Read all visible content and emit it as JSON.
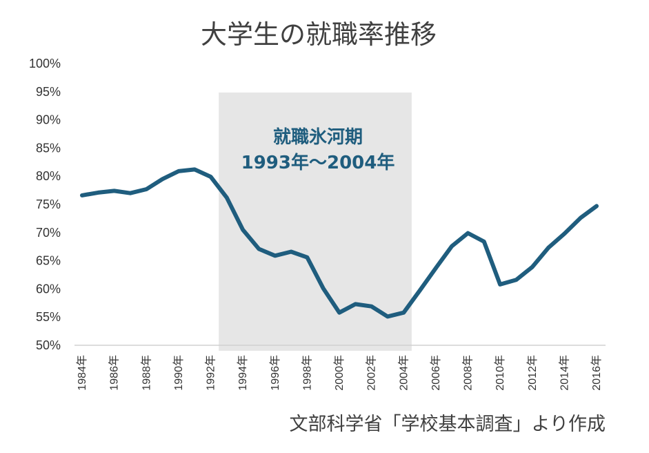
{
  "chart_data": {
    "type": "line",
    "title": "大学生の就職率推移",
    "source": "文部科学省「学校基本調査」より作成",
    "xlabel": "",
    "ylabel": "",
    "ylim": [
      50,
      100
    ],
    "yticks": [
      "50%",
      "55%",
      "60%",
      "65%",
      "70%",
      "75%",
      "80%",
      "85%",
      "90%",
      "95%",
      "100%"
    ],
    "x": [
      1984,
      1985,
      1986,
      1987,
      1988,
      1989,
      1990,
      1991,
      1992,
      1993,
      1994,
      1995,
      1996,
      1997,
      1998,
      1999,
      2000,
      2001,
      2002,
      2003,
      2004,
      2005,
      2006,
      2007,
      2008,
      2009,
      2010,
      2011,
      2012,
      2013,
      2014,
      2015,
      2016
    ],
    "xticks": [
      "1984年",
      "1986年",
      "1988年",
      "1990年",
      "1992年",
      "1994年",
      "1996年",
      "1998年",
      "2000年",
      "2002年",
      "2004年",
      "2006年",
      "2008年",
      "2010年",
      "2012年",
      "2014年",
      "2016年"
    ],
    "series": [
      {
        "values": [
          76.6,
          77.1,
          77.4,
          77.0,
          77.7,
          79.5,
          80.9,
          81.2,
          79.9,
          76.2,
          70.5,
          67.1,
          65.9,
          66.6,
          65.6,
          60.1,
          55.8,
          57.3,
          56.9,
          55.1,
          55.8,
          59.7,
          63.7,
          67.6,
          69.9,
          68.4,
          60.8,
          61.6,
          63.9,
          67.3,
          69.8,
          72.6,
          74.7
        ]
      }
    ],
    "highlight": {
      "label_line1": "就職氷河期",
      "label_line2": "1993年～2004年",
      "x_start": 1993,
      "x_end": 2004
    },
    "colors": {
      "line": "#1f5d7e",
      "band": "#e6e6e6",
      "axis": "#d0d0d0"
    },
    "grid": false,
    "legend": "none"
  }
}
